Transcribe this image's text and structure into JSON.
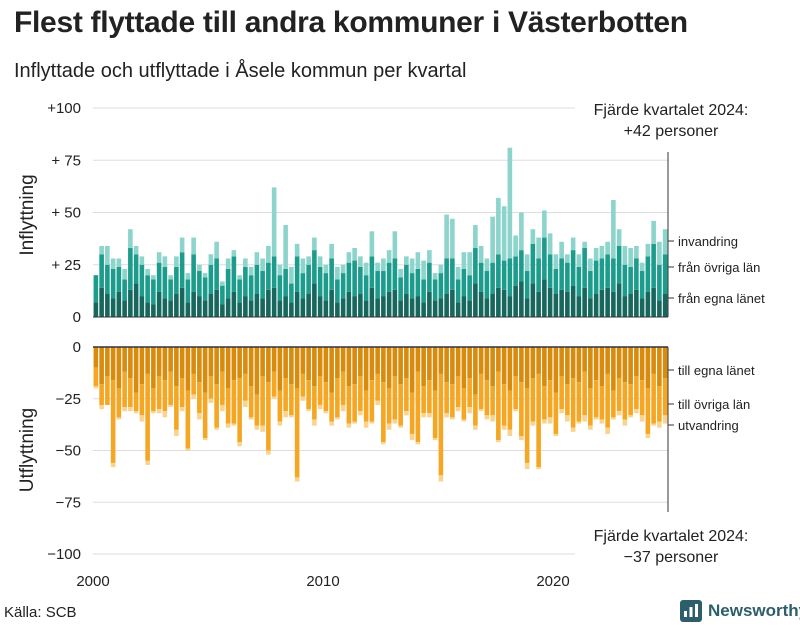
{
  "header": {
    "title": "Flest flyttade till andra kommuner i Västerbotten",
    "subtitle": "Inflyttade och utflyttade i Åsele kommun per kvartal"
  },
  "footer": {
    "source": "Källa: SCB",
    "brand": "Newsworthy"
  },
  "colors": {
    "in_egna": "#17675e",
    "in_ovriga": "#1c9c8c",
    "in_invandring": "#8cd4cc",
    "out_egna": "#d98b0e",
    "out_ovriga": "#f5a623",
    "out_utvandring": "#fad48f",
    "brand": "#2e5e6b"
  },
  "chart_data": {
    "type": "bar",
    "stacked": true,
    "period": "quarterly",
    "x_start": "2000 Q1",
    "x_end": "2024 Q4",
    "xticks": [
      "2000",
      "2010",
      "2020"
    ],
    "panels": [
      {
        "name": "Inflyttning",
        "ylabel": "Inflyttning",
        "ylim": [
          0,
          100
        ],
        "yticks": [
          "0",
          "+ 25",
          "+ 50",
          "+ 75",
          "+100"
        ],
        "annotation": [
          "Fjärde kvartalet 2024:",
          "+42 personer"
        ],
        "legend": [
          "invandring",
          "från övriga län",
          "från egna länet"
        ],
        "series": [
          {
            "name": "från egna länet",
            "values": [
              7,
              14,
              11,
              9,
              12,
              8,
              13,
              16,
              10,
              7,
              6,
              12,
              9,
              8,
              11,
              14,
              7,
              12,
              10,
              8,
              11,
              13,
              6,
              9,
              12,
              7,
              10,
              8,
              11,
              9,
              13,
              14,
              8,
              10,
              7,
              12,
              9,
              11,
              16,
              10,
              8,
              13,
              7,
              9,
              12,
              10,
              11,
              8,
              14,
              9,
              10,
              12,
              13,
              8,
              11,
              9,
              10,
              7,
              12,
              8,
              9,
              11,
              13,
              7,
              10,
              8,
              16,
              12,
              9,
              11,
              14,
              13,
              10,
              15,
              17,
              9,
              16,
              12,
              18,
              14,
              11,
              13,
              12,
              15,
              10,
              14,
              9,
              11,
              13,
              14,
              12,
              16,
              10,
              11,
              13,
              9,
              12,
              14,
              8,
              11
            ]
          },
          {
            "name": "från övriga län",
            "values": [
              13,
              16,
              14,
              14,
              12,
              10,
              20,
              14,
              15,
              13,
              12,
              14,
              15,
              10,
              13,
              17,
              11,
              18,
              12,
              11,
              14,
              15,
              9,
              14,
              17,
              11,
              14,
              12,
              14,
              13,
              13,
              15,
              12,
              13,
              9,
              17,
              12,
              14,
              16,
              14,
              13,
              15,
              11,
              12,
              14,
              17,
              13,
              12,
              15,
              13,
              12,
              14,
              15,
              11,
              14,
              12,
              13,
              11,
              14,
              10,
              12,
              17,
              15,
              11,
              13,
              12,
              17,
              14,
              13,
              15,
              16,
              14,
              18,
              14,
              15,
              13,
              19,
              16,
              20,
              16,
              12,
              15,
              14,
              17,
              14,
              19,
              13,
              16,
              15,
              16,
              16,
              18,
              15,
              13,
              15,
              13,
              17,
              21,
              17,
              19
            ]
          },
          {
            "name": "invandring",
            "values": [
              0,
              4,
              9,
              5,
              4,
              5,
              9,
              4,
              4,
              3,
              2,
              5,
              5,
              2,
              5,
              7,
              3,
              8,
              3,
              2,
              5,
              8,
              2,
              5,
              3,
              2,
              4,
              4,
              6,
              6,
              8,
              33,
              5,
              21,
              8,
              6,
              7,
              4,
              6,
              5,
              4,
              7,
              6,
              4,
              5,
              6,
              5,
              6,
              12,
              4,
              6,
              6,
              13,
              4,
              4,
              7,
              8,
              9,
              6,
              3,
              4,
              21,
              19,
              6,
              8,
              11,
              11,
              8,
              6,
              22,
              27,
              26,
              53,
              10,
              18,
              8,
              7,
              10,
              13,
              10,
              7,
              8,
              4,
              6,
              6,
              3,
              6,
              6,
              6,
              6,
              28,
              8,
              9,
              9,
              6,
              4,
              6,
              11,
              11,
              12
            ]
          }
        ]
      },
      {
        "name": "Utflyttning",
        "ylabel": "Utflyttning",
        "ylim": [
          -100,
          0
        ],
        "yticks": [
          "0",
          "−25",
          "−50",
          "−75",
          "−100"
        ],
        "annotation": [
          "Fjärde kvartalet 2024:",
          "−37 personer"
        ],
        "legend": [
          "till egna länet",
          "till övriga län",
          "utvandring"
        ],
        "series": [
          {
            "name": "till egna länet",
            "values": [
              -10,
              -18,
              -14,
              -16,
              -20,
              -12,
              -15,
              -22,
              -18,
              -13,
              -20,
              -14,
              -16,
              -12,
              -19,
              -15,
              -21,
              -13,
              -17,
              -22,
              -14,
              -18,
              -12,
              -20,
              -16,
              -15,
              -13,
              -19,
              -23,
              -14,
              -17,
              -12,
              -21,
              -15,
              -18,
              -20,
              -13,
              -16,
              -19,
              -14,
              -17,
              -22,
              -15,
              -12,
              -19,
              -18,
              -14,
              -21,
              -16,
              -13,
              -17,
              -20,
              -14,
              -18,
              -15,
              -22,
              -12,
              -19,
              -16,
              -21,
              -13,
              -17,
              -18,
              -14,
              -20,
              -15,
              -23,
              -13,
              -16,
              -19,
              -12,
              -18,
              -21,
              -14,
              -17,
              -20,
              -15,
              -13,
              -19,
              -16,
              -22,
              -14,
              -18,
              -15,
              -17,
              -12,
              -20,
              -16,
              -19,
              -13,
              -21,
              -15,
              -17,
              -18,
              -14,
              -16,
              -20,
              -13,
              -19,
              -15
            ]
          },
          {
            "name": "till övriga län",
            "values": [
              -9,
              -10,
              -14,
              -40,
              -14,
              -17,
              -14,
              -9,
              -15,
              -42,
              -11,
              -16,
              -15,
              -16,
              -21,
              -14,
              -28,
              -10,
              -15,
              -22,
              -11,
              -21,
              -16,
              -17,
              -21,
              -31,
              -13,
              -15,
              -15,
              -24,
              -33,
              -12,
              -15,
              -16,
              -15,
              -43,
              -11,
              -14,
              -16,
              -14,
              -14,
              -14,
              -19,
              -16,
              -18,
              -18,
              -17,
              -15,
              -20,
              -13,
              -29,
              -17,
              -21,
              -20,
              -16,
              -20,
              -34,
              -13,
              -16,
              -23,
              -49,
              -15,
              -16,
              -15,
              -15,
              -14,
              -15,
              -17,
              -17,
              -14,
              -33,
              -20,
              -19,
              -16,
              -26,
              -36,
              -21,
              -45,
              -16,
              -18,
              -20,
              -16,
              -15,
              -24,
              -19,
              -21,
              -18,
              -18,
              -16,
              -26,
              -13,
              -16,
              -18,
              -15,
              -16,
              -17,
              -22,
              -24,
              -17,
              -18
            ]
          },
          {
            "name": "utvandring",
            "values": [
              -1,
              -2,
              0,
              -2,
              -1,
              -2,
              -2,
              -1,
              -3,
              -2,
              -1,
              -2,
              -3,
              -1,
              -3,
              -2,
              -1,
              -2,
              -3,
              -1,
              -2,
              -1,
              -3,
              -2,
              -1,
              -2,
              -3,
              -1,
              -2,
              -3,
              -2,
              -1,
              -2,
              -3,
              -1,
              -2,
              -2,
              -1,
              -3,
              -2,
              -1,
              -2,
              -1,
              -3,
              -2,
              -1,
              -2,
              -3,
              -1,
              -2,
              -1,
              -3,
              -2,
              -1,
              -2,
              -3,
              -1,
              -2,
              -2,
              -1,
              -3,
              -2,
              -1,
              -2,
              -1,
              -3,
              -2,
              -1,
              -2,
              -3,
              -1,
              -2,
              -3,
              -1,
              -2,
              -3,
              -2,
              -1,
              -2,
              -3,
              -1,
              -2,
              -3,
              -2,
              -1,
              -3,
              -2,
              -1,
              -2,
              -3,
              -1,
              -2,
              -3,
              -1,
              -2,
              -3,
              -2,
              -1,
              -3,
              -4
            ]
          }
        ]
      }
    ]
  }
}
